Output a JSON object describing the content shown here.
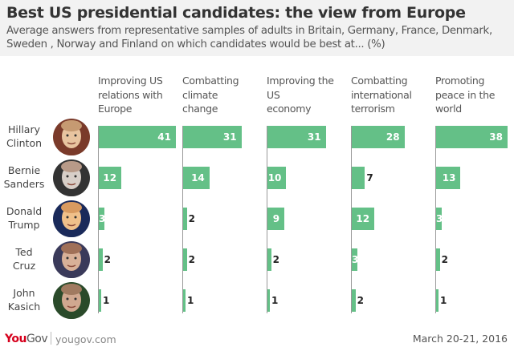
{
  "header": {
    "title": "Best US presidential candidates: the view from Europe",
    "subtitle": "Average answers from representative samples of adults in Britain, Germany, France, Denmark, Sweden , Norway and Finland on which candidates would be best at... (%)"
  },
  "colors": {
    "bar": "#64c087",
    "logo_you": "#d6001c",
    "logo_gov": "#555555"
  },
  "candidates": [
    {
      "name": "Hillary Clinton",
      "line1": "Hillary",
      "line2": "Clinton",
      "icon": "hillary-clinton-photo"
    },
    {
      "name": "Bernie Sanders",
      "line1": "Bernie",
      "line2": "Sanders",
      "icon": "bernie-sanders-photo"
    },
    {
      "name": "Donald Trump",
      "line1": "Donald",
      "line2": "Trump",
      "icon": "donald-trump-photo"
    },
    {
      "name": "Ted Cruz",
      "line1": "Ted",
      "line2": "Cruz",
      "icon": "ted-cruz-photo"
    },
    {
      "name": "John Kasich",
      "line1": "John",
      "line2": "Kasich",
      "icon": "john-kasich-photo"
    }
  ],
  "chart_data": {
    "type": "bar",
    "orientation": "horizontal",
    "layout": "small-multiples",
    "title": "Best US presidential candidates: the view from Europe",
    "subtitle": "Average answers from representative samples of adults in Britain, Germany, France, Denmark, Sweden , Norway and Finland on which candidates would be best at... (%)",
    "categories": [
      "Hillary Clinton",
      "Bernie Sanders",
      "Donald Trump",
      "Ted Cruz",
      "John Kasich"
    ],
    "xlim": [
      0,
      41
    ],
    "grid": false,
    "series": [
      {
        "name": "Improving US relations with Europe",
        "lines": [
          "Improving US",
          "relations with",
          "Europe"
        ],
        "values": [
          41,
          12,
          3,
          2,
          1
        ]
      },
      {
        "name": "Combatting climate change",
        "lines": [
          "Combatting",
          "climate",
          "change"
        ],
        "values": [
          31,
          14,
          2,
          2,
          1
        ]
      },
      {
        "name": "Improving the US economy",
        "lines": [
          "Improving the",
          "US",
          "economy"
        ],
        "values": [
          31,
          10,
          9,
          2,
          1
        ]
      },
      {
        "name": "Combatting international terrorism",
        "lines": [
          "Combatting",
          "international",
          "terrorism"
        ],
        "values": [
          28,
          7,
          12,
          3,
          2
        ]
      },
      {
        "name": "Promoting peace in the world",
        "lines": [
          "Promoting",
          "peace in the",
          "world"
        ],
        "values": [
          38,
          13,
          3,
          2,
          1
        ]
      }
    ]
  },
  "footer": {
    "logo_you": "You",
    "logo_gov": "Gov",
    "url": "yougov.com",
    "date": "March 20-21, 2016"
  }
}
